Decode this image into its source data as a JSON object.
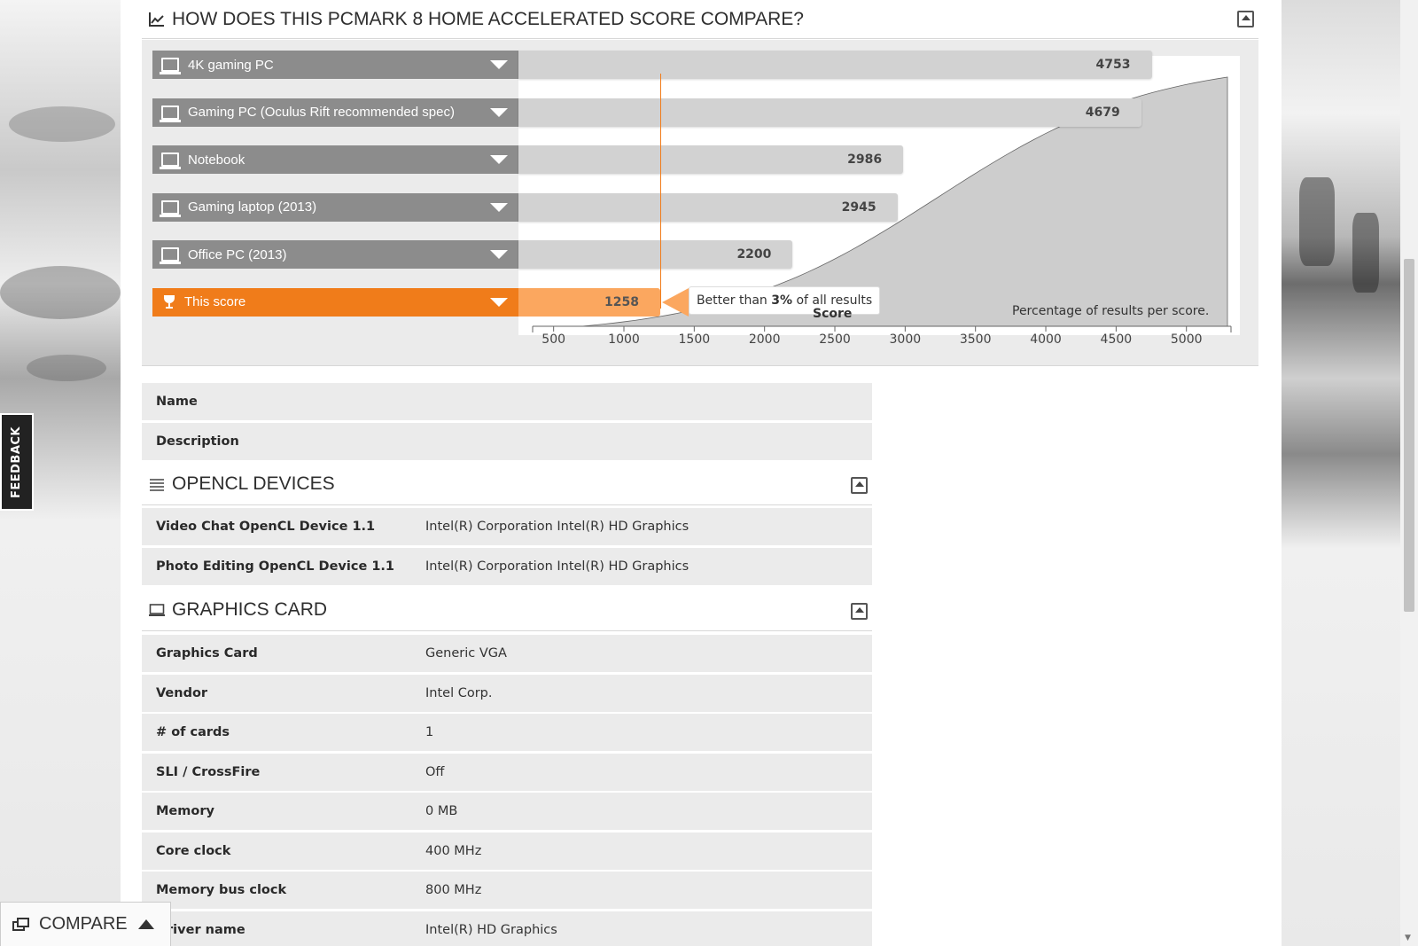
{
  "compare_section": {
    "title": "HOW DOES THIS PCMARK 8 HOME ACCELERATED SCORE COMPARE?"
  },
  "chart_data": {
    "type": "bar",
    "categories": [
      "4K gaming PC",
      "Gaming PC (Oculus Rift recommended spec)",
      "Notebook",
      "Gaming laptop (2013)",
      "Office PC (2013)",
      "This score"
    ],
    "values": [
      4753,
      4679,
      2986,
      2945,
      2200,
      1258
    ],
    "highlight_index": 5,
    "xlabel": "Score",
    "x_ticks": [
      500,
      1000,
      1500,
      2000,
      2500,
      3000,
      3500,
      4000,
      4500,
      5000
    ],
    "xlim": [
      250,
      5380
    ],
    "distribution_caption": "Percentage of results per score.",
    "comparison": {
      "prefix": "Better than",
      "percent": "3%",
      "suffix": "of all results"
    },
    "colors": {
      "reference": "#d2d2d2",
      "this_score": "#fba75f",
      "label_grey": "#8c8c8c",
      "label_orange": "#f07c1a"
    }
  },
  "info_rows": [
    {
      "key": "Name",
      "value": ""
    },
    {
      "key": "Description",
      "value": ""
    }
  ],
  "opencl": {
    "title": "OPENCL DEVICES",
    "rows": [
      {
        "key": "Video Chat OpenCL Device 1.1",
        "value": "Intel(R) Corporation Intel(R) HD Graphics"
      },
      {
        "key": "Photo Editing OpenCL Device 1.1",
        "value": "Intel(R) Corporation Intel(R) HD Graphics"
      }
    ]
  },
  "graphics": {
    "title": "GRAPHICS CARD",
    "rows": [
      {
        "key": "Graphics Card",
        "value": "Generic VGA"
      },
      {
        "key": "Vendor",
        "value": "Intel Corp."
      },
      {
        "key": "# of cards",
        "value": "1"
      },
      {
        "key": "SLI / CrossFire",
        "value": "Off"
      },
      {
        "key": "Memory",
        "value": "0 MB"
      },
      {
        "key": "Core clock",
        "value": "400 MHz"
      },
      {
        "key": "Memory bus clock",
        "value": "800 MHz"
      },
      {
        "key": "Driver name",
        "value": "Intel(R) HD Graphics"
      }
    ]
  },
  "feedback": {
    "label": "FEEDBACK"
  },
  "compare_bar": {
    "label": "COMPARE"
  }
}
